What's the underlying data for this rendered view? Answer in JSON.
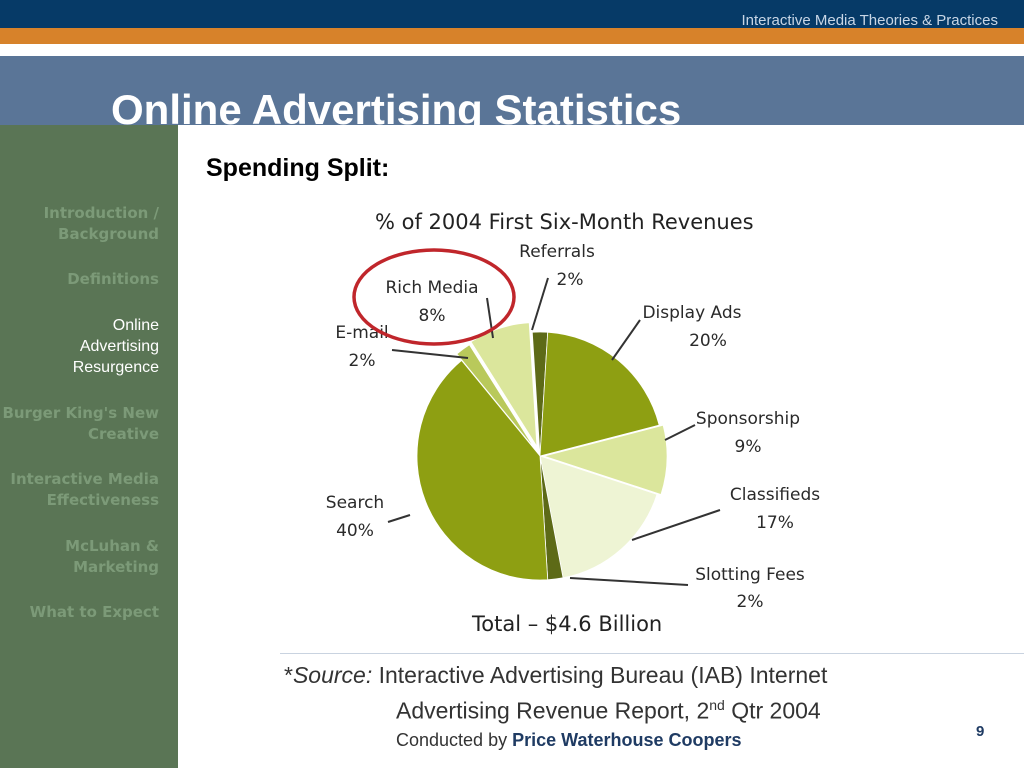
{
  "header": {
    "course_title": "Interactive Media Theories & Practices"
  },
  "slide": {
    "title": "Online Advertising Statistics",
    "subtitle": "Spending Split:",
    "page_number": "9"
  },
  "sidebar": {
    "items": [
      {
        "label": "Introduction / Background",
        "lines": [
          "Introduction /",
          "Background"
        ],
        "active": false
      },
      {
        "label": "Definitions",
        "lines": [
          "Definitions"
        ],
        "active": false
      },
      {
        "label": "Online Advertising Resurgence",
        "lines": [
          "Online",
          "Advertising",
          "Resurgence"
        ],
        "active": true
      },
      {
        "label": "Burger King's New Creative",
        "lines": [
          "Burger King's New",
          "Creative"
        ],
        "active": false
      },
      {
        "label": "Interactive Media Effectiveness",
        "lines": [
          "Interactive Media",
          "Effectiveness"
        ],
        "active": false
      },
      {
        "label": "McLuhan & Marketing",
        "lines": [
          "McLuhan &",
          "Marketing"
        ],
        "active": false
      },
      {
        "label": "What to Expect",
        "lines": [
          "What to Expect"
        ],
        "active": false
      }
    ]
  },
  "source": {
    "prefix": "*",
    "label": "Source:",
    "line1": "Interactive Advertising Bureau (IAB) Internet",
    "line2": "Advertising Revenue Report, 2",
    "line2_sup": "nd",
    "line2_end": "Qtr 2004",
    "conducted_prefix": "Conducted by",
    "conducted_by": "Price Waterhouse Coopers"
  },
  "colors": {
    "header_band": "#063a67",
    "orange_band": "#d7822a",
    "title_band": "#5a7597",
    "sidebar": "#5a7555",
    "highlight_circle": "#c0262b"
  },
  "chart_data": {
    "type": "pie",
    "title": "% of 2004 First Six-Month Revenues",
    "footer": "Total – $4.6 Billion",
    "highlighted": "Rich Media",
    "slices": [
      {
        "name": "Referrals",
        "value": 2,
        "label": "2%",
        "color": "#5d6a17"
      },
      {
        "name": "Display Ads",
        "value": 20,
        "label": "20%",
        "color": "#8e9f12"
      },
      {
        "name": "Sponsorship",
        "value": 9,
        "label": "9%",
        "color": "#dbe69c"
      },
      {
        "name": "Classifieds",
        "value": 17,
        "label": "17%",
        "color": "#eef4d4"
      },
      {
        "name": "Slotting Fees",
        "value": 2,
        "label": "2%",
        "color": "#5d6a17"
      },
      {
        "name": "Search",
        "value": 40,
        "label": "40%",
        "color": "#8e9f12"
      },
      {
        "name": "E-mail",
        "value": 2,
        "label": "2%",
        "color": "#b9c95b"
      },
      {
        "name": "Rich Media",
        "value": 8,
        "label": "8%",
        "color": "#dbe69c"
      }
    ]
  }
}
